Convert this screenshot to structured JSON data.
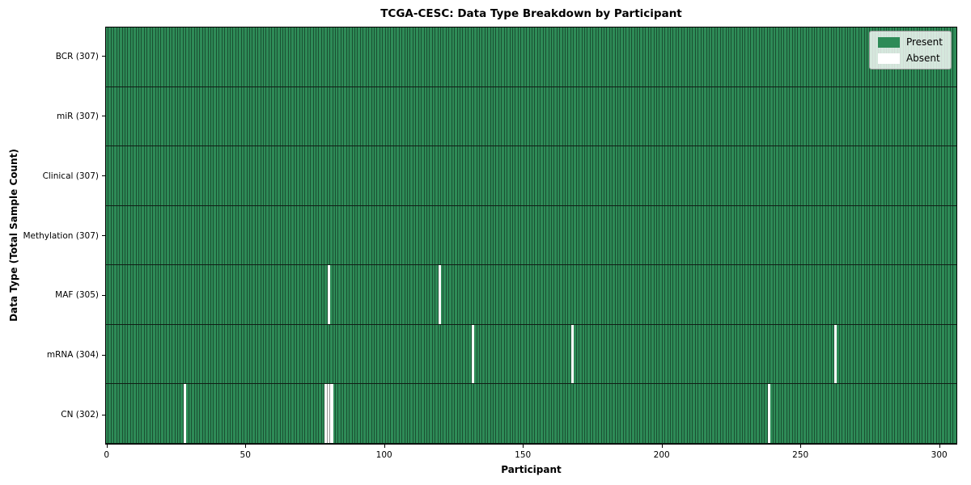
{
  "title": "TCGA-CESC: Data Type Breakdown by Participant",
  "xlabel": "Participant",
  "ylabel": "Data Type (Total Sample Count)",
  "colors": {
    "present": "#2e8b57",
    "absent": "#ffffff",
    "gridline": "rgba(0,0,0,0.42)",
    "row_divider": "rgba(10,10,10,0.85)",
    "spine": "#000000",
    "legend_background": "rgba(255,255,255,0.8)",
    "legend_border": "#9a9a9a"
  },
  "chart_data": {
    "type": "heatmap",
    "title": "TCGA-CESC: Data Type Breakdown by Participant",
    "xlabel": "Participant",
    "ylabel": "Data Type (Total Sample Count)",
    "n_participants": 307,
    "x_ticks": [
      0,
      50,
      100,
      150,
      200,
      250,
      300
    ],
    "xlim": [
      -0.5,
      306.5
    ],
    "grid": "vertical-cell-edges",
    "legend_position": "upper-right-inside",
    "legend": [
      "Present",
      "Absent"
    ],
    "rows": [
      {
        "name": "BCR",
        "label": "BCR (307)",
        "total": 307,
        "absent_participants": []
      },
      {
        "name": "miR",
        "label": "miR (307)",
        "total": 307,
        "absent_participants": []
      },
      {
        "name": "Clinical",
        "label": "Clinical (307)",
        "total": 307,
        "absent_participants": []
      },
      {
        "name": "Methylation",
        "label": "Methylation (307)",
        "total": 307,
        "absent_participants": []
      },
      {
        "name": "MAF",
        "label": "MAF (305)",
        "total": 305,
        "absent_participants": [
          80,
          120
        ]
      },
      {
        "name": "mRNA",
        "label": "mRNA (304)",
        "total": 304,
        "absent_participants": [
          132,
          168,
          263
        ]
      },
      {
        "name": "CN",
        "label": "CN (302)",
        "total": 302,
        "absent_participants": [
          28,
          79,
          80,
          81,
          239
        ]
      }
    ]
  }
}
